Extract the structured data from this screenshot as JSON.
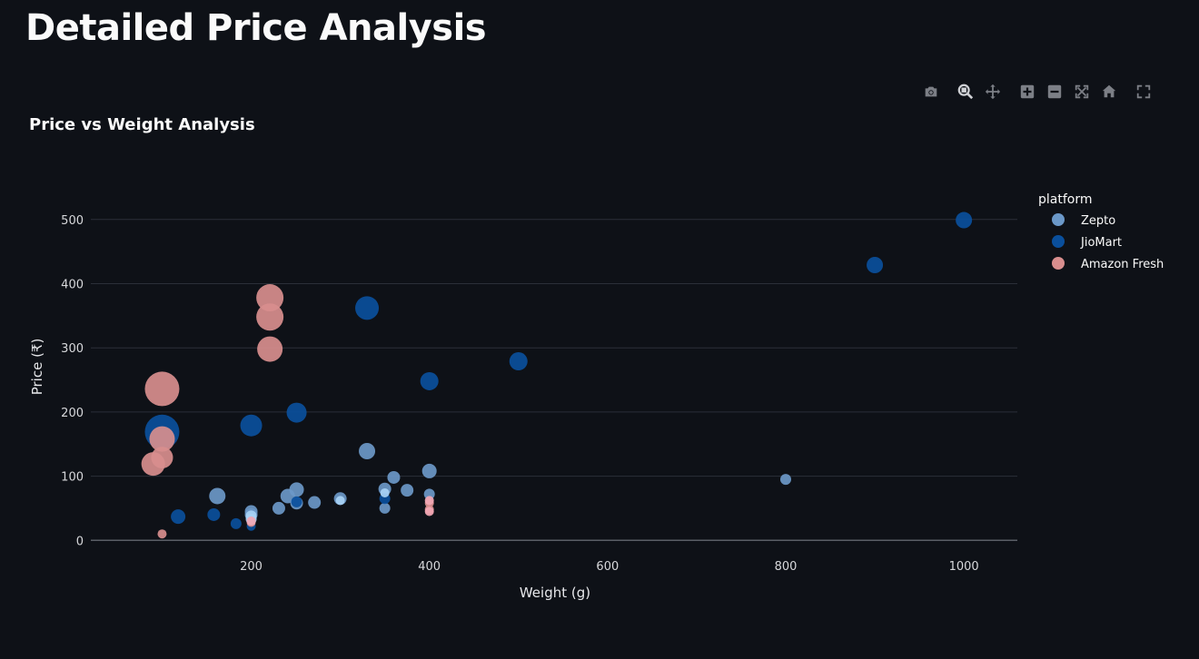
{
  "page": {
    "title": "Detailed Price Analysis"
  },
  "toolbar": {
    "icons": [
      "camera-icon",
      "zoom-icon",
      "pan-icon",
      "zoom-in-icon",
      "zoom-out-icon",
      "autoscale-icon",
      "home-icon",
      "fullscreen-icon"
    ]
  },
  "chart_data": {
    "type": "scatter",
    "title": "Price vs Weight Analysis",
    "xlabel": "Weight (g)",
    "ylabel": "Price (₹)",
    "xlim": [
      20,
      1060
    ],
    "ylim": [
      -35,
      545
    ],
    "xticks": [
      200,
      400,
      600,
      800,
      1000
    ],
    "yticks": [
      0,
      100,
      200,
      300,
      400,
      500
    ],
    "grid": "horizontal",
    "legend": {
      "title": "platform",
      "position": "right"
    },
    "series": [
      {
        "name": "Zepto",
        "color": "#6b98c8",
        "points": [
          {
            "x": 162,
            "y": 69,
            "size": 9
          },
          {
            "x": 200,
            "y": 45,
            "size": 7
          },
          {
            "x": 200,
            "y": 40,
            "size": 7
          },
          {
            "x": 231,
            "y": 50,
            "size": 7
          },
          {
            "x": 241,
            "y": 69,
            "size": 8
          },
          {
            "x": 251,
            "y": 79,
            "size": 8
          },
          {
            "x": 251,
            "y": 58,
            "size": 7
          },
          {
            "x": 271,
            "y": 59,
            "size": 7
          },
          {
            "x": 300,
            "y": 65,
            "size": 7
          },
          {
            "x": 330,
            "y": 139,
            "size": 9
          },
          {
            "x": 350,
            "y": 80,
            "size": 7
          },
          {
            "x": 350,
            "y": 50,
            "size": 6
          },
          {
            "x": 360,
            "y": 98,
            "size": 7
          },
          {
            "x": 375,
            "y": 78,
            "size": 7
          },
          {
            "x": 400,
            "y": 108,
            "size": 8
          },
          {
            "x": 400,
            "y": 72,
            "size": 6
          },
          {
            "x": 800,
            "y": 95,
            "size": 6
          }
        ]
      },
      {
        "name": "JioMart",
        "color": "#0a4f9c",
        "points": [
          {
            "x": 100,
            "y": 169,
            "size": 19
          },
          {
            "x": 118,
            "y": 37,
            "size": 8
          },
          {
            "x": 158,
            "y": 40,
            "size": 7
          },
          {
            "x": 183,
            "y": 26,
            "size": 6
          },
          {
            "x": 200,
            "y": 179,
            "size": 12
          },
          {
            "x": 200,
            "y": 22,
            "size": 5
          },
          {
            "x": 251,
            "y": 199,
            "size": 11
          },
          {
            "x": 251,
            "y": 60,
            "size": 6
          },
          {
            "x": 330,
            "y": 362,
            "size": 13
          },
          {
            "x": 350,
            "y": 65,
            "size": 6
          },
          {
            "x": 400,
            "y": 248,
            "size": 10
          },
          {
            "x": 500,
            "y": 279,
            "size": 10
          },
          {
            "x": 900,
            "y": 429,
            "size": 9
          },
          {
            "x": 1000,
            "y": 499,
            "size": 9
          }
        ]
      },
      {
        "name": "Amazon Fresh",
        "color": "#d88e8e",
        "points": [
          {
            "x": 90,
            "y": 119,
            "size": 13
          },
          {
            "x": 100,
            "y": 236,
            "size": 19
          },
          {
            "x": 100,
            "y": 158,
            "size": 14
          },
          {
            "x": 100,
            "y": 129,
            "size": 12
          },
          {
            "x": 100,
            "y": 10,
            "size": 5
          },
          {
            "x": 200,
            "y": 28,
            "size": 5
          },
          {
            "x": 221,
            "y": 378,
            "size": 15
          },
          {
            "x": 221,
            "y": 348,
            "size": 15
          },
          {
            "x": 221,
            "y": 298,
            "size": 14
          },
          {
            "x": 400,
            "y": 58,
            "size": 5
          },
          {
            "x": 400,
            "y": 48,
            "size": 5
          }
        ]
      },
      {
        "name": "",
        "color": "#a8d2f5",
        "points": [
          {
            "x": 200,
            "y": 38,
            "size": 6
          },
          {
            "x": 200,
            "y": 33,
            "size": 6
          },
          {
            "x": 300,
            "y": 62,
            "size": 5
          },
          {
            "x": 350,
            "y": 74,
            "size": 5
          }
        ]
      },
      {
        "name": "",
        "color": "#f2a7b4",
        "points": [
          {
            "x": 200,
            "y": 30,
            "size": 5
          },
          {
            "x": 400,
            "y": 62,
            "size": 5
          },
          {
            "x": 400,
            "y": 45,
            "size": 5
          }
        ]
      }
    ]
  }
}
